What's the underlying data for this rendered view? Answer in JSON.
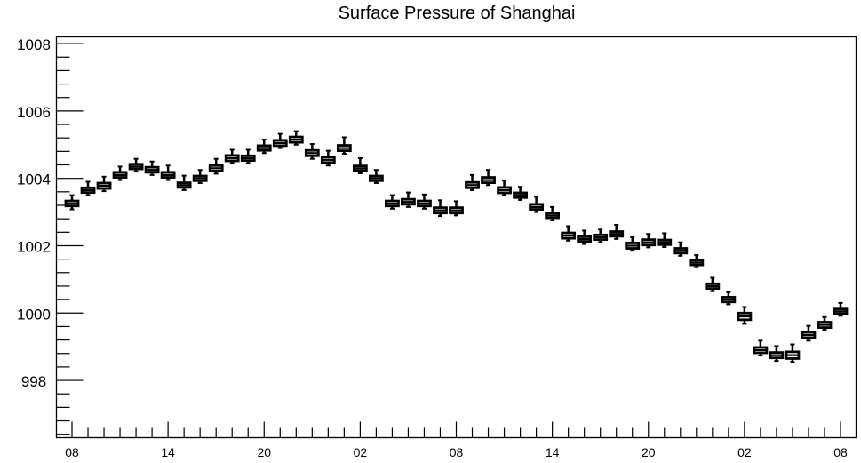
{
  "chart_data": {
    "type": "box",
    "title": "Surface Pressure of Shanghai",
    "xlabel": "",
    "ylabel": "",
    "ylim": [
      996.3,
      1008.2
    ],
    "y_ticks": [
      998,
      1000,
      1002,
      1004,
      1006,
      1008
    ],
    "y_tick_labels": [
      "998",
      "1000",
      "1002",
      "1004",
      "1006",
      "1008"
    ],
    "x_tick_labels": [
      "08",
      "14",
      "20",
      "02",
      "08",
      "14",
      "20",
      "02",
      "08"
    ],
    "x_tick_hours": [
      0,
      6,
      12,
      18,
      24,
      30,
      36,
      42,
      48
    ],
    "grid": false,
    "legend": "none",
    "series": [
      {
        "hours": [
          0,
          1,
          2,
          3,
          4,
          5,
          6,
          7,
          8,
          9,
          10,
          11,
          12,
          13,
          14,
          15,
          16,
          17,
          18,
          19,
          20,
          21,
          22,
          23,
          24,
          25,
          26,
          27,
          28,
          29,
          30,
          31,
          32,
          33,
          34,
          35,
          36,
          37,
          38,
          39,
          40,
          41,
          42,
          43,
          44,
          45,
          46,
          47,
          48
        ],
        "median": [
          1003.25,
          1003.65,
          1003.78,
          1004.1,
          1004.35,
          1004.25,
          1004.1,
          1003.8,
          1004.0,
          1004.3,
          1004.6,
          1004.6,
          1004.9,
          1005.05,
          1005.15,
          1004.75,
          1004.55,
          1004.9,
          1004.3,
          1004.0,
          1003.25,
          1003.3,
          1003.25,
          1003.05,
          1003.05,
          1003.8,
          1003.95,
          1003.65,
          1003.5,
          1003.15,
          1002.9,
          1002.3,
          1002.2,
          1002.25,
          1002.35,
          1002.0,
          1002.1,
          1002.1,
          1001.85,
          1001.5,
          1000.8,
          1000.4,
          999.9,
          998.9,
          998.75,
          998.75,
          999.35,
          999.65,
          1000.05
        ],
        "q1": [
          1003.18,
          1003.58,
          1003.7,
          1004.03,
          1004.28,
          1004.18,
          1004.03,
          1003.73,
          1003.93,
          1004.22,
          1004.52,
          1004.53,
          1004.83,
          1004.97,
          1005.07,
          1004.67,
          1004.47,
          1004.82,
          1004.23,
          1003.93,
          1003.18,
          1003.23,
          1003.18,
          1002.97,
          1002.97,
          1003.72,
          1003.87,
          1003.57,
          1003.43,
          1003.08,
          1002.83,
          1002.22,
          1002.13,
          1002.18,
          1002.28,
          1001.92,
          1002.02,
          1002.03,
          1001.78,
          1001.43,
          1000.73,
          1000.33,
          999.8,
          998.82,
          998.67,
          998.65,
          999.27,
          999.57,
          999.98
        ],
        "q3": [
          1003.33,
          1003.72,
          1003.86,
          1004.18,
          1004.42,
          1004.33,
          1004.18,
          1003.87,
          1004.07,
          1004.38,
          1004.68,
          1004.67,
          1004.97,
          1005.13,
          1005.23,
          1004.83,
          1004.63,
          1004.98,
          1004.37,
          1004.07,
          1003.33,
          1003.38,
          1003.33,
          1003.13,
          1003.13,
          1003.88,
          1004.03,
          1003.73,
          1003.57,
          1003.23,
          1002.97,
          1002.38,
          1002.27,
          1002.32,
          1002.42,
          1002.08,
          1002.18,
          1002.17,
          1001.92,
          1001.57,
          1000.87,
          1000.47,
          1000.0,
          998.98,
          998.83,
          998.85,
          999.43,
          999.73,
          1000.12
        ],
        "min": [
          1003.08,
          1003.5,
          1003.62,
          1003.95,
          1004.2,
          1004.1,
          1003.95,
          1003.65,
          1003.86,
          1004.14,
          1004.45,
          1004.45,
          1004.75,
          1004.9,
          1005.0,
          1004.58,
          1004.38,
          1004.73,
          1004.15,
          1003.86,
          1003.1,
          1003.15,
          1003.1,
          1002.88,
          1002.9,
          1003.65,
          1003.8,
          1003.5,
          1003.36,
          1003.0,
          1002.75,
          1002.15,
          1002.05,
          1002.1,
          1002.2,
          1001.85,
          1001.95,
          1001.96,
          1001.7,
          1001.36,
          1000.65,
          1000.26,
          999.68,
          998.74,
          998.58,
          998.55,
          999.18,
          999.5,
          999.92
        ],
        "max": [
          1003.5,
          1003.9,
          1004.05,
          1004.35,
          1004.58,
          1004.5,
          1004.38,
          1004.08,
          1004.25,
          1004.58,
          1004.85,
          1004.85,
          1005.15,
          1005.32,
          1005.4,
          1005.02,
          1004.82,
          1005.22,
          1004.6,
          1004.25,
          1003.5,
          1003.58,
          1003.52,
          1003.35,
          1003.32,
          1004.1,
          1004.25,
          1003.93,
          1003.75,
          1003.45,
          1003.15,
          1002.58,
          1002.45,
          1002.48,
          1002.62,
          1002.25,
          1002.35,
          1002.37,
          1002.1,
          1001.72,
          1001.05,
          1000.62,
          1000.18,
          999.18,
          999.02,
          999.07,
          999.62,
          999.88,
          1000.3
        ]
      }
    ]
  }
}
